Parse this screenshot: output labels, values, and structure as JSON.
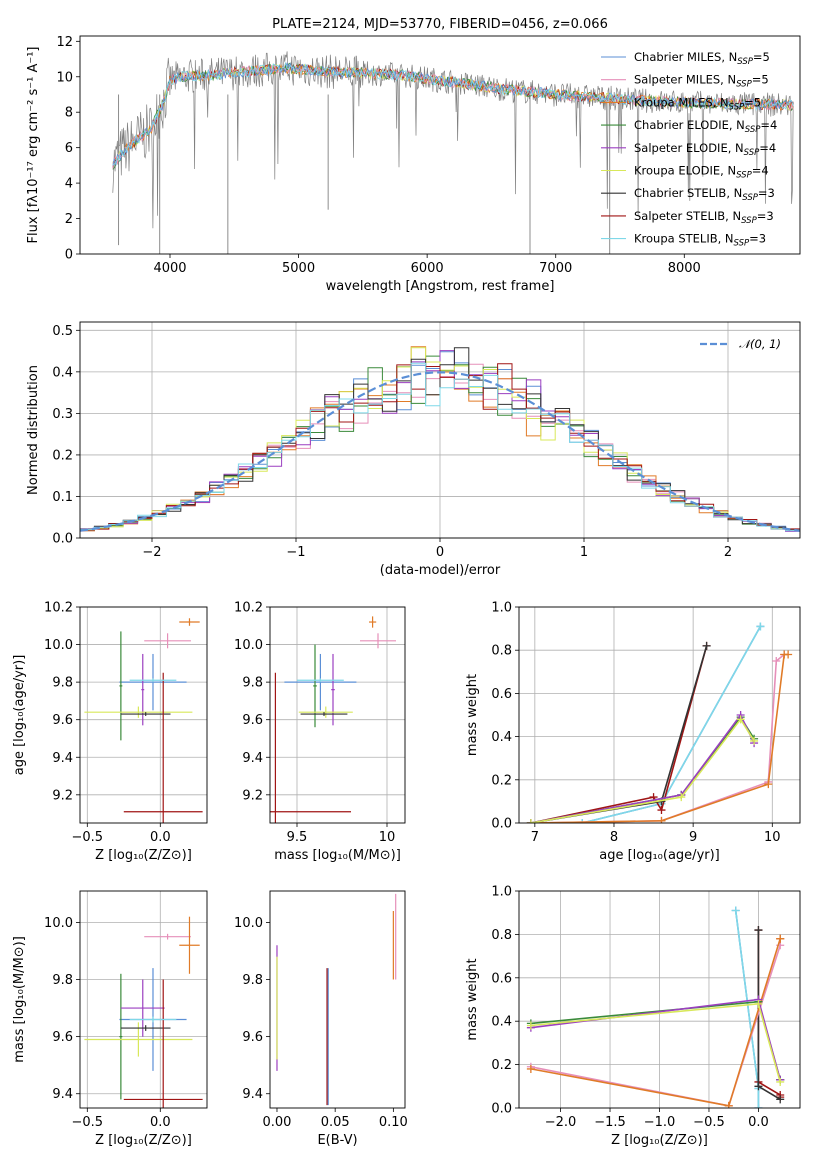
{
  "colors": {
    "chabrier_miles": "#5b8fd6",
    "salpeter_miles": "#e68fb9",
    "kroupa_miles": "#e07b28",
    "chabrier_elodie": "#3a8a3a",
    "salpeter_elodie": "#9b3fc0",
    "kroupa_elodie": "#d8e85a",
    "chabrier_stelib": "#333333",
    "salpeter_stelib": "#a01515",
    "kroupa_stelib": "#7fd8e8",
    "data": "#808080",
    "normal": "#5b8fd6"
  },
  "chart_data": [
    {
      "id": "spectrum",
      "type": "line",
      "title": "PLATE=2124, MJD=53770, FIBERID=0456, z=0.066",
      "xlabel": "wavelength [Angstrom, rest frame]",
      "ylabel": "Flux [fλ10⁻¹⁷ erg cm⁻² s⁻¹ A⁻¹]",
      "xlim": [
        3300,
        8900
      ],
      "ylim": [
        0,
        12.3
      ],
      "xticks": [
        4000,
        5000,
        6000,
        7000,
        8000
      ],
      "yticks": [
        0,
        2,
        4,
        6,
        8,
        10,
        12
      ],
      "legend_position": "right",
      "legend": [
        {
          "label": "Chabrier MILES, N_SSP=5",
          "color_key": "chabrier_miles"
        },
        {
          "label": "Salpeter MILES, N_SSP=5",
          "color_key": "salpeter_miles"
        },
        {
          "label": "Kroupa MILES, N_SSP=5",
          "color_key": "kroupa_miles"
        },
        {
          "label": "Chabrier ELODIE, N_SSP=4",
          "color_key": "chabrier_elodie"
        },
        {
          "label": "Salpeter ELODIE, N_SSP=4",
          "color_key": "salpeter_elodie"
        },
        {
          "label": "Kroupa ELODIE, N_SSP=4",
          "color_key": "kroupa_elodie"
        },
        {
          "label": "Chabrier STELIB, N_SSP=3",
          "color_key": "chabrier_stelib"
        },
        {
          "label": "Salpeter STELIB, N_SSP=3",
          "color_key": "salpeter_stelib"
        },
        {
          "label": "Kroupa STELIB, N_SSP=3",
          "color_key": "kroupa_stelib"
        }
      ],
      "continuum": [
        [
          3550,
          5.0
        ],
        [
          3650,
          5.9
        ],
        [
          3750,
          6.5
        ],
        [
          3850,
          7.0
        ],
        [
          3950,
          8.6
        ],
        [
          4000,
          9.8
        ],
        [
          4100,
          10.0
        ],
        [
          4300,
          10.1
        ],
        [
          4600,
          10.3
        ],
        [
          4900,
          10.5
        ],
        [
          5200,
          10.3
        ],
        [
          5500,
          10.2
        ],
        [
          5800,
          10.1
        ],
        [
          6200,
          9.7
        ],
        [
          6600,
          9.3
        ],
        [
          7000,
          9.0
        ],
        [
          7400,
          8.8
        ],
        [
          7800,
          8.6
        ],
        [
          8200,
          8.5
        ],
        [
          8800,
          8.4
        ]
      ]
    },
    {
      "id": "residuals",
      "type": "area",
      "xlabel": "(data-model)/error",
      "ylabel": "Normed distribution",
      "xlim": [
        -2.5,
        2.5
      ],
      "ylim": [
        0,
        0.52
      ],
      "xticks": [
        -2,
        -1,
        0,
        1,
        2
      ],
      "yticks": [
        0.0,
        0.1,
        0.2,
        0.3,
        0.4,
        0.5
      ],
      "grid": true,
      "legend_position": "top-right",
      "legend": "𝒩(0, 1)",
      "bin_width": 0.1
    },
    {
      "id": "age_vs_Z",
      "type": "scatter",
      "xlabel": "Z [log₁₀(Z/Z⊙)]",
      "ylabel": "age  [log₁₀(age/yr)]",
      "xlim": [
        -0.55,
        0.32
      ],
      "ylim": [
        9.05,
        10.2
      ],
      "xticks": [
        -0.5,
        0.0
      ],
      "xtick_labels": [
        "−0.5",
        "0.0"
      ],
      "yticks": [
        9.2,
        9.4,
        9.6,
        9.8,
        10.0,
        10.2
      ],
      "grid": true,
      "points": [
        {
          "k": "chabrier_miles",
          "x": -0.05,
          "y": 9.8,
          "xe": 0.23,
          "ye": 0.15
        },
        {
          "k": "salpeter_miles",
          "x": 0.05,
          "y": 10.02,
          "xe": 0.16,
          "ye": 0.04
        },
        {
          "k": "kroupa_miles",
          "x": 0.2,
          "y": 10.12,
          "xe": 0.07,
          "ye": 0.02
        },
        {
          "k": "chabrier_elodie",
          "x": -0.27,
          "y": 9.78,
          "xe": 0.01,
          "ye": 0.29
        },
        {
          "k": "salpeter_elodie",
          "x": -0.12,
          "y": 9.76,
          "xe": 0.01,
          "ye": 0.19
        },
        {
          "k": "kroupa_elodie",
          "x": -0.15,
          "y": 9.64,
          "xe": 0.37,
          "ye": 0.03
        },
        {
          "k": "chabrier_stelib",
          "x": -0.1,
          "y": 9.63,
          "xe": 0.17,
          "ye": 0.01
        },
        {
          "k": "salpeter_stelib",
          "x": 0.02,
          "y": 9.11,
          "xe": 0.27,
          "ye": 0.74
        },
        {
          "k": "kroupa_stelib",
          "x": -0.05,
          "y": 9.81,
          "xe": 0.16,
          "ye": 0.01
        }
      ]
    },
    {
      "id": "age_vs_mass",
      "type": "scatter",
      "xlabel": "mass [log₁₀(M/M⊙)]",
      "ylabel": "",
      "xlim": [
        9.35,
        10.1
      ],
      "ylim": [
        9.05,
        10.2
      ],
      "xticks": [
        9.5,
        10.0
      ],
      "yticks": [
        9.2,
        9.4,
        9.6,
        9.8,
        10.0,
        10.2
      ],
      "grid": true,
      "points": [
        {
          "k": "chabrier_miles",
          "x": 9.63,
          "y": 9.8,
          "xe": 0.2,
          "ye": 0.15
        },
        {
          "k": "salpeter_miles",
          "x": 9.95,
          "y": 10.02,
          "xe": 0.1,
          "ye": 0.04
        },
        {
          "k": "kroupa_miles",
          "x": 9.92,
          "y": 10.12,
          "xe": 0.02,
          "ye": 0.03
        },
        {
          "k": "chabrier_elodie",
          "x": 9.6,
          "y": 9.78,
          "xe": 0.01,
          "ye": 0.22
        },
        {
          "k": "salpeter_elodie",
          "x": 9.7,
          "y": 9.76,
          "xe": 0.01,
          "ye": 0.19
        },
        {
          "k": "kroupa_elodie",
          "x": 9.66,
          "y": 9.64,
          "xe": 0.15,
          "ye": 0.03
        },
        {
          "k": "chabrier_stelib",
          "x": 9.65,
          "y": 9.63,
          "xe": 0.13,
          "ye": 0.01
        },
        {
          "k": "salpeter_stelib",
          "x": 9.38,
          "y": 9.11,
          "xe": 0.42,
          "ye": 0.74
        },
        {
          "k": "kroupa_stelib",
          "x": 9.63,
          "y": 9.81,
          "xe": 0.13,
          "ye": 0.01
        }
      ]
    },
    {
      "id": "weight_vs_age",
      "type": "line",
      "xlabel": "age  [log₁₀(age/yr)]",
      "ylabel": "mass weight",
      "xlim": [
        6.8,
        10.35
      ],
      "ylim": [
        0,
        1.0
      ],
      "xticks": [
        7,
        8,
        9,
        10
      ],
      "yticks": [
        0.0,
        0.2,
        0.4,
        0.6,
        0.8,
        1.0
      ],
      "grid": true,
      "series": [
        {
          "k": "chabrier_miles",
          "x": [
            7.6,
            8.6,
            9.85
          ],
          "y": [
            0.0,
            0.09,
            0.91
          ]
        },
        {
          "k": "kroupa_stelib",
          "x": [
            7.6,
            8.6,
            9.85
          ],
          "y": [
            0.0,
            0.09,
            0.91
          ]
        },
        {
          "k": "salpeter_stelib",
          "x": [
            6.95,
            8.5,
            8.6,
            9.17
          ],
          "y": [
            0.0,
            0.12,
            0.06,
            0.82
          ]
        },
        {
          "k": "chabrier_stelib",
          "x": [
            6.95,
            8.6,
            9.17
          ],
          "y": [
            0.0,
            0.1,
            0.82
          ]
        },
        {
          "k": "salpeter_miles",
          "x": [
            6.95,
            8.6,
            9.95,
            10.05,
            10.15
          ],
          "y": [
            0.0,
            0.01,
            0.19,
            0.75,
            0.78
          ]
        },
        {
          "k": "kroupa_miles",
          "x": [
            6.95,
            8.6,
            9.95,
            10.15,
            10.2
          ],
          "y": [
            0.0,
            0.01,
            0.18,
            0.78,
            0.78
          ]
        },
        {
          "k": "chabrier_elodie",
          "x": [
            6.95,
            8.85,
            9.6,
            9.77
          ],
          "y": [
            0.0,
            0.13,
            0.49,
            0.39
          ]
        },
        {
          "k": "salpeter_elodie",
          "x": [
            6.95,
            8.85,
            9.6,
            9.77
          ],
          "y": [
            0.0,
            0.13,
            0.5,
            0.37
          ]
        },
        {
          "k": "kroupa_elodie",
          "x": [
            6.95,
            8.85,
            9.6,
            9.77
          ],
          "y": [
            0.0,
            0.12,
            0.48,
            0.38
          ]
        }
      ]
    },
    {
      "id": "mass_vs_Z",
      "type": "scatter",
      "xlabel": "Z [log₁₀(Z/Z⊙)]",
      "ylabel": "mass [log₁₀(M/M⊙)]",
      "xlim": [
        -0.55,
        0.32
      ],
      "ylim": [
        9.35,
        10.11
      ],
      "xticks": [
        -0.5,
        0.0
      ],
      "xtick_labels": [
        "−0.5",
        "0.0"
      ],
      "yticks": [
        9.4,
        9.6,
        9.8,
        10.0
      ],
      "grid": true,
      "points": [
        {
          "k": "chabrier_miles",
          "x": -0.05,
          "y": 9.66,
          "xe": 0.23,
          "ye": 0.18
        },
        {
          "k": "salpeter_miles",
          "x": 0.05,
          "y": 9.95,
          "xe": 0.16,
          "ye": 0.01
        },
        {
          "k": "kroupa_miles",
          "x": 0.2,
          "y": 9.92,
          "xe": 0.07,
          "ye": 0.1
        },
        {
          "k": "chabrier_elodie",
          "x": -0.27,
          "y": 9.6,
          "xe": 0.01,
          "ye": 0.22
        },
        {
          "k": "salpeter_elodie",
          "x": -0.12,
          "y": 9.7,
          "xe": 0.15,
          "ye": 0.1
        },
        {
          "k": "kroupa_elodie",
          "x": -0.15,
          "y": 9.59,
          "xe": 0.37,
          "ye": 0.06
        },
        {
          "k": "chabrier_stelib",
          "x": -0.1,
          "y": 9.63,
          "xe": 0.17,
          "ye": 0.01
        },
        {
          "k": "salpeter_stelib",
          "x": 0.02,
          "y": 9.38,
          "xe": 0.27,
          "ye": 0.42
        },
        {
          "k": "kroupa_stelib",
          "x": -0.05,
          "y": 9.66,
          "xe": 0.16,
          "ye": 0.01
        }
      ]
    },
    {
      "id": "mass_vs_ebv",
      "type": "scatter",
      "xlabel": "E(B-V)",
      "ylabel": "",
      "xlim": [
        -0.006,
        0.11
      ],
      "ylim": [
        9.35,
        10.11
      ],
      "xticks": [
        0.0,
        0.05,
        0.1
      ],
      "xtick_labels": [
        "0.00",
        "0.05",
        "0.10"
      ],
      "yticks": [
        9.4,
        9.6,
        9.8,
        10.0
      ],
      "grid": false,
      "points": [
        {
          "k": "chabrier_miles",
          "x": 0.044,
          "y": 9.6,
          "xe": 0.0,
          "ye": 0.24
        },
        {
          "k": "salpeter_stelib",
          "x": 0.043,
          "y": 9.6,
          "xe": 0.0,
          "ye": 0.24
        },
        {
          "k": "salpeter_elodie",
          "x": 0.0,
          "y": 9.7,
          "xe": 0.0,
          "ye": 0.22
        },
        {
          "k": "kroupa_elodie",
          "x": 0.0,
          "y": 9.7,
          "xe": 0.0,
          "ye": 0.18
        },
        {
          "k": "salpeter_miles",
          "x": 0.102,
          "y": 9.95,
          "xe": 0.0,
          "ye": 0.15
        },
        {
          "k": "kroupa_miles",
          "x": 0.1,
          "y": 9.92,
          "xe": 0.0,
          "ye": 0.12
        }
      ]
    },
    {
      "id": "weight_vs_Z",
      "type": "line",
      "xlabel": "Z [log₁₀(Z/Z⊙)]",
      "ylabel": "mass weight",
      "xlim": [
        -2.42,
        0.42
      ],
      "ylim": [
        0,
        1.0
      ],
      "xticks": [
        -2.0,
        -1.5,
        -1.0,
        -0.5,
        0.0
      ],
      "xtick_labels": [
        "−2.0",
        "−1.5",
        "−1.0",
        "−0.5",
        "0.0"
      ],
      "yticks": [
        0.0,
        0.2,
        0.4,
        0.6,
        0.8,
        1.0
      ],
      "grid": true,
      "series": [
        {
          "k": "chabrier_miles",
          "x": [
            -0.23,
            0.0,
            0.0
          ],
          "y": [
            0.91,
            0.09,
            0.0
          ]
        },
        {
          "k": "kroupa_stelib",
          "x": [
            -0.23,
            0.0,
            0.0
          ],
          "y": [
            0.91,
            0.09,
            0.0
          ]
        },
        {
          "k": "salpeter_stelib",
          "x": [
            0.0,
            0.0,
            0.22,
            0.22
          ],
          "y": [
            0.82,
            0.12,
            0.06,
            0.05
          ]
        },
        {
          "k": "chabrier_stelib",
          "x": [
            0.0,
            0.0,
            0.22
          ],
          "y": [
            0.82,
            0.1,
            0.04
          ]
        },
        {
          "k": "salpeter_miles",
          "x": [
            -2.3,
            -0.3,
            0.22,
            0.22
          ],
          "y": [
            0.19,
            0.01,
            0.75,
            0.78
          ]
        },
        {
          "k": "kroupa_miles",
          "x": [
            -2.3,
            -0.3,
            0.22,
            0.22
          ],
          "y": [
            0.18,
            0.01,
            0.78,
            0.78
          ]
        },
        {
          "k": "chabrier_elodie",
          "x": [
            -2.3,
            0.0,
            0.22,
            0.22
          ],
          "y": [
            0.39,
            0.49,
            0.13,
            0.13
          ]
        },
        {
          "k": "salpeter_elodie",
          "x": [
            -2.3,
            0.0,
            0.22
          ],
          "y": [
            0.37,
            0.5,
            0.13
          ]
        },
        {
          "k": "kroupa_elodie",
          "x": [
            -2.3,
            0.0,
            0.22
          ],
          "y": [
            0.38,
            0.48,
            0.12
          ]
        }
      ]
    }
  ]
}
